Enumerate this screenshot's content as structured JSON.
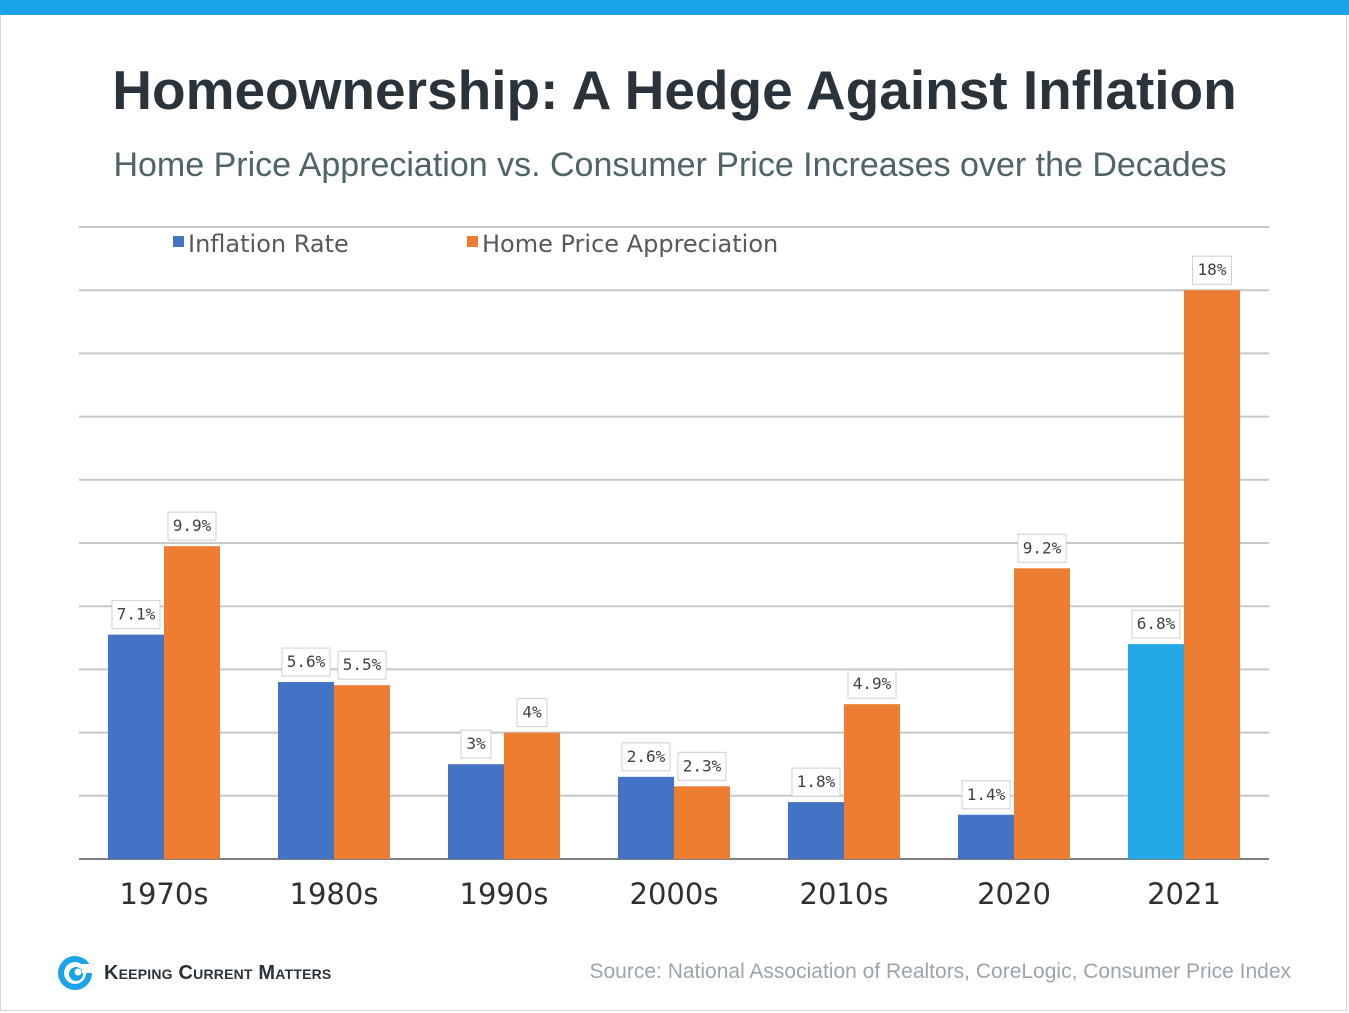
{
  "title": "Homeownership: A Hedge Against Inflation",
  "subtitle": "Home Price Appreciation vs. Consumer Price Increases over the Decades",
  "source": "Source: National Association of Realtors, CoreLogic, Consumer Price Index",
  "logo": {
    "text": "Keeping Current Matters",
    "icon": "kcm-swirl-logo-icon"
  },
  "colors": {
    "top_bar": "#1aa3e8",
    "inflation": "#4472c4",
    "inflation_highlight": "#22a9e6",
    "home_price": "#ed7d31",
    "grid": "#c8c8c8",
    "axis": "#7f7f7f"
  },
  "chart_data": {
    "type": "bar",
    "categories": [
      "1970s",
      "1980s",
      "1990s",
      "2000s",
      "2010s",
      "2020",
      "2021"
    ],
    "series": [
      {
        "name": "Inflation Rate",
        "values": [
          7.1,
          5.6,
          3,
          2.6,
          1.8,
          1.4,
          6.8
        ],
        "labels": [
          "7.1%",
          "5.6%",
          "3%",
          "2.6%",
          "1.8%",
          "1.4%",
          "6.8%"
        ],
        "highlight_index": 6
      },
      {
        "name": "Home Price Appreciation",
        "values": [
          9.9,
          5.5,
          4,
          2.3,
          4.9,
          9.2,
          18
        ],
        "labels": [
          "9.9%",
          "5.5%",
          "4%",
          "2.3%",
          "4.9%",
          "9.2%",
          "18%"
        ]
      }
    ],
    "ylim": [
      0,
      20
    ],
    "grid": true,
    "legend": "top-left"
  }
}
